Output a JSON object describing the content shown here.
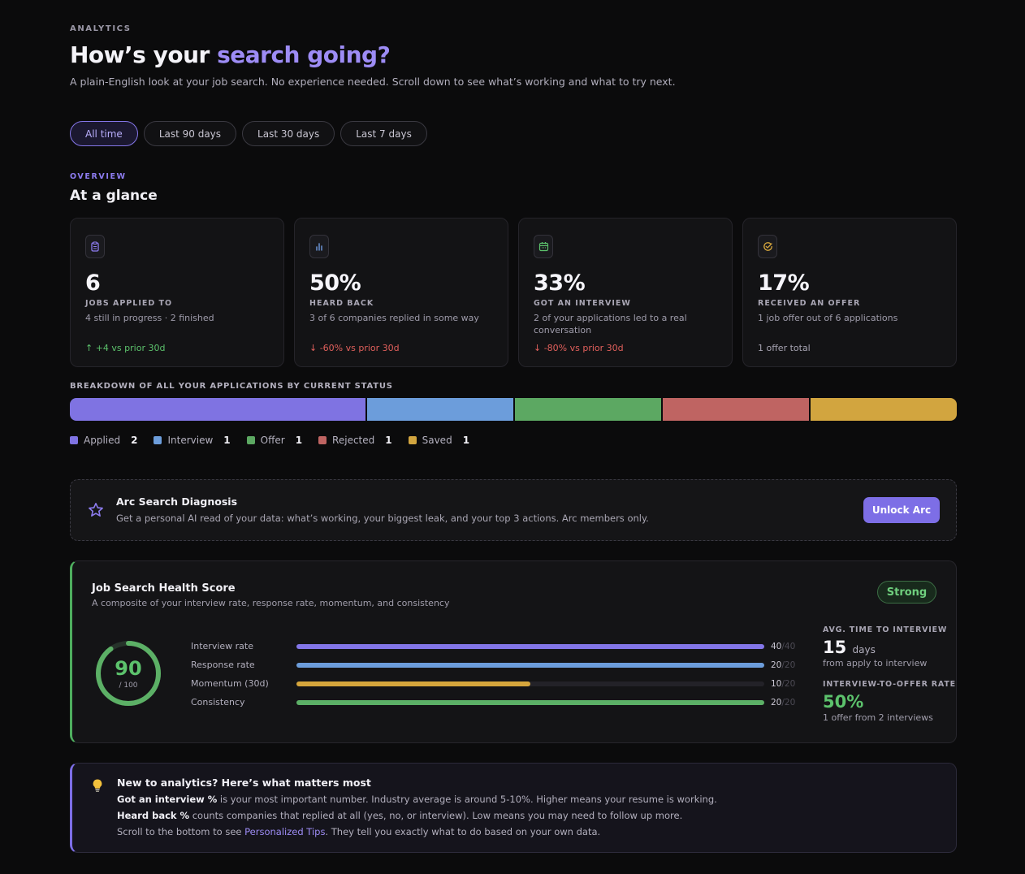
{
  "header": {
    "eyebrow": "ANALYTICS",
    "title_prefix": "How’s your ",
    "title_accent": "search going?",
    "subtitle": "A plain-English look at your job search. No experience needed. Scroll down to see what’s working and what to try next."
  },
  "filters": [
    {
      "label": "All time",
      "active": true
    },
    {
      "label": "Last 90 days",
      "active": false
    },
    {
      "label": "Last 30 days",
      "active": false
    },
    {
      "label": "Last 7 days",
      "active": false
    }
  ],
  "overview": {
    "eyebrow": "OVERVIEW",
    "title": "At a glance",
    "cards": [
      {
        "icon": "clipboard-icon",
        "icon_color": "#8d7cf0",
        "value": "6",
        "label": "JOBS APPLIED TO",
        "desc": "4 still in progress · 2 finished",
        "foot": "↑ +4 vs prior 30d",
        "trend": "up"
      },
      {
        "icon": "bar-chart-icon",
        "icon_color": "#6f9be0",
        "value": "50%",
        "label": "HEARD BACK",
        "desc": "3 of 6 companies replied in some way",
        "foot": "↓ -60% vs prior 30d",
        "trend": "down"
      },
      {
        "icon": "calendar-icon",
        "icon_color": "#5cc26c",
        "value": "33%",
        "label": "GOT AN INTERVIEW",
        "desc": "2 of your applications led to a real conversation",
        "foot": "↓ -80% vs prior 30d",
        "trend": "down"
      },
      {
        "icon": "check-circle-icon",
        "icon_color": "#d6a63c",
        "value": "17%",
        "label": "RECEIVED AN OFFER",
        "desc": "1 job offer out of 6 applications",
        "foot": "1 offer total",
        "trend": "neutral"
      }
    ]
  },
  "breakdown": {
    "title": "BREAKDOWN OF ALL YOUR APPLICATIONS BY CURRENT STATUS",
    "statuses": [
      {
        "label": "Applied",
        "count": 2,
        "color": "#7f73e2"
      },
      {
        "label": "Interview",
        "count": 1,
        "color": "#6c9ddb"
      },
      {
        "label": "Offer",
        "count": 1,
        "color": "#5ca862"
      },
      {
        "label": "Rejected",
        "count": 1,
        "color": "#bf6462"
      },
      {
        "label": "Saved",
        "count": 1,
        "color": "#d2a53f"
      }
    ]
  },
  "arc": {
    "title": "Arc Search Diagnosis",
    "desc": "Get a personal AI read of your data: what’s working, your biggest leak, and your top 3 actions. Arc members only.",
    "button": "Unlock Arc"
  },
  "health": {
    "title": "Job Search Health Score",
    "subtitle": "A composite of your interview rate, response rate, momentum, and consistency",
    "badge": "Strong",
    "score": "90",
    "score_of": "/ 100",
    "score_value": 90,
    "score_max": 100,
    "metrics": [
      {
        "label": "Interview rate",
        "value": 40,
        "max": 40,
        "value_text": "40",
        "max_text": "/40",
        "color": "#8376e8"
      },
      {
        "label": "Response rate",
        "value": 20,
        "max": 20,
        "value_text": "20",
        "max_text": "/20",
        "color": "#6c9ddb"
      },
      {
        "label": "Momentum (30d)",
        "value": 10,
        "max": 20,
        "value_text": "10",
        "max_text": "/20",
        "color": "#d6a63c"
      },
      {
        "label": "Consistency",
        "value": 20,
        "max": 20,
        "value_text": "20",
        "max_text": "/20",
        "color": "#5cb066"
      }
    ],
    "avg_label": "AVG. TIME TO INTERVIEW",
    "avg_value": "15",
    "avg_unit": "days",
    "avg_desc": "from apply to interview",
    "offer_label": "INTERVIEW-TO-OFFER RATE",
    "offer_value": "50%",
    "offer_desc": "1 offer from 2 interviews"
  },
  "tips": {
    "icon": "lightbulb-icon",
    "title": "New to analytics? Here’s what matters most",
    "line1_bold": "Got an interview %",
    "line1_rest": " is your most important number. Industry average is around 5-10%. Higher means your resume is working.",
    "line2_bold": "Heard back %",
    "line2_rest": " counts companies that replied at all (yes, no, or interview). Low means you may need to follow up more.",
    "line3_pre": "Scroll to the bottom to see ",
    "line3_link": "Personalized Tips",
    "line3_post": ". They tell you exactly what to do based on your own data."
  },
  "colors": {
    "accent": "#9d8cf5",
    "success": "#5cc26c",
    "danger": "#e2605c"
  }
}
